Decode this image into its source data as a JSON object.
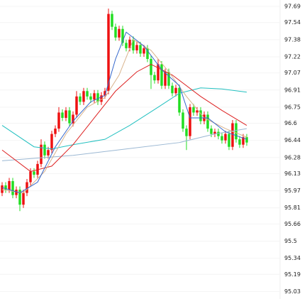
{
  "chart_data": {
    "type": "candlestick",
    "up_color": "#ee1111",
    "down_color": "#22dd22",
    "grid": true,
    "ylim": [
      94.96,
      97.75
    ],
    "xlim": [
      -0.6,
      78.4
    ],
    "yticks": [
      97.69,
      97.54,
      97.38,
      97.22,
      97.07,
      96.91,
      96.75,
      96.6,
      96.44,
      96.28,
      96.13,
      95.97,
      95.81,
      95.66,
      95.5,
      95.34,
      95.19,
      95.03
    ],
    "open": [
      95.95,
      96.02,
      95.98,
      96.06,
      95.93,
      95.98,
      95.84,
      95.95,
      96.05,
      96.15,
      96.12,
      96.22,
      96.4,
      96.3,
      96.35,
      96.5,
      96.55,
      96.7,
      96.65,
      96.72,
      96.6,
      96.68,
      96.85,
      96.8,
      96.9,
      96.85,
      96.82,
      96.88,
      96.8,
      96.86,
      96.9,
      97.62,
      97.5,
      97.4,
      97.48,
      97.35,
      97.3,
      97.38,
      97.28,
      97.33,
      97.25,
      97.3,
      97.2,
      97.05,
      97.0,
      97.15,
      96.95,
      97.08,
      96.95,
      96.88,
      96.93,
      96.7,
      96.55,
      96.48,
      96.75,
      96.7,
      96.72,
      96.62,
      96.68,
      96.55,
      96.5,
      96.52,
      96.48,
      96.44,
      96.5,
      96.38,
      96.6,
      96.45,
      96.4,
      96.47
    ],
    "high": [
      96.05,
      96.05,
      96.09,
      96.09,
      96.01,
      96.01,
      95.98,
      96.08,
      96.18,
      96.18,
      96.25,
      96.45,
      96.43,
      96.38,
      96.53,
      96.58,
      96.75,
      96.73,
      96.75,
      96.75,
      96.71,
      96.9,
      96.88,
      96.93,
      96.93,
      96.88,
      96.91,
      96.91,
      96.89,
      96.93,
      97.67,
      97.65,
      97.53,
      97.51,
      97.51,
      97.38,
      97.41,
      97.41,
      97.36,
      97.36,
      97.33,
      97.33,
      97.23,
      97.08,
      97.2,
      97.18,
      97.11,
      97.11,
      96.98,
      96.96,
      96.96,
      96.73,
      96.58,
      96.78,
      96.78,
      96.75,
      96.75,
      96.71,
      96.71,
      96.58,
      96.55,
      96.55,
      96.51,
      96.53,
      96.53,
      96.63,
      96.63,
      96.48,
      96.5,
      96.5
    ],
    "low": [
      95.92,
      95.95,
      95.95,
      95.9,
      95.9,
      95.78,
      95.81,
      95.92,
      96.02,
      96.09,
      96.09,
      96.19,
      96.27,
      96.27,
      96.32,
      96.47,
      96.52,
      96.62,
      96.62,
      96.57,
      96.57,
      96.65,
      96.77,
      96.77,
      96.82,
      96.79,
      96.79,
      96.77,
      96.77,
      96.83,
      96.87,
      97.47,
      97.37,
      97.37,
      97.32,
      97.27,
      97.27,
      97.25,
      97.25,
      97.22,
      97.22,
      97.17,
      96.92,
      96.97,
      96.97,
      96.92,
      96.92,
      96.92,
      96.85,
      96.85,
      96.67,
      96.52,
      96.35,
      96.45,
      96.67,
      96.67,
      96.59,
      96.59,
      96.52,
      96.47,
      96.47,
      96.45,
      96.41,
      96.41,
      96.35,
      96.35,
      96.42,
      96.37,
      96.37,
      96.39
    ],
    "close": [
      96.02,
      95.98,
      96.06,
      95.93,
      95.98,
      95.84,
      95.95,
      96.05,
      96.15,
      96.12,
      96.22,
      96.4,
      96.3,
      96.35,
      96.5,
      96.55,
      96.7,
      96.65,
      96.72,
      96.6,
      96.68,
      96.85,
      96.8,
      96.9,
      96.85,
      96.82,
      96.88,
      96.8,
      96.86,
      96.9,
      97.62,
      97.5,
      97.4,
      97.48,
      97.35,
      97.3,
      97.38,
      97.28,
      97.33,
      97.25,
      97.3,
      97.2,
      97.05,
      97.0,
      97.15,
      96.95,
      97.08,
      96.95,
      96.88,
      96.93,
      96.7,
      96.55,
      96.48,
      96.75,
      96.7,
      96.72,
      96.62,
      96.68,
      96.55,
      96.5,
      96.52,
      96.48,
      96.44,
      96.5,
      96.38,
      96.6,
      96.45,
      96.4,
      96.47,
      96.42
    ],
    "lines": [
      {
        "color": "#9bb8d3",
        "x": [
          0,
          20,
          35,
          50,
          60,
          69
        ],
        "values": [
          96.25,
          96.3,
          96.36,
          96.42,
          96.5,
          96.55
        ]
      },
      {
        "color": "#22c0c0",
        "x": [
          0,
          9,
          14,
          20,
          29,
          36,
          44,
          50,
          56,
          62,
          69
        ],
        "values": [
          96.58,
          96.38,
          96.36,
          96.4,
          96.45,
          96.58,
          96.75,
          96.88,
          96.93,
          96.92,
          96.89
        ]
      },
      {
        "color": "#dd2222",
        "x": [
          0,
          8,
          14,
          20,
          26,
          32,
          38,
          42,
          48,
          56,
          62,
          69
        ],
        "values": [
          96.35,
          96.15,
          96.2,
          96.4,
          96.65,
          96.9,
          97.08,
          97.15,
          97.05,
          96.85,
          96.72,
          96.58
        ]
      },
      {
        "color": "#d9b38c",
        "x": [
          0,
          6,
          12,
          18,
          24,
          29,
          33,
          37,
          42,
          47,
          52,
          57,
          63,
          69
        ],
        "values": [
          95.98,
          95.95,
          96.15,
          96.5,
          96.75,
          96.84,
          97.05,
          97.38,
          97.28,
          97.08,
          96.85,
          96.65,
          96.55,
          96.47
        ]
      },
      {
        "color": "#3366cc",
        "x": [
          0,
          5,
          10,
          15,
          20,
          25,
          29,
          32,
          35,
          40,
          45,
          50,
          53,
          58,
          63,
          69
        ],
        "values": [
          96.0,
          95.95,
          96.05,
          96.38,
          96.62,
          96.8,
          96.86,
          97.2,
          97.45,
          97.32,
          97.1,
          96.95,
          96.65,
          96.65,
          96.52,
          96.45
        ]
      }
    ]
  }
}
